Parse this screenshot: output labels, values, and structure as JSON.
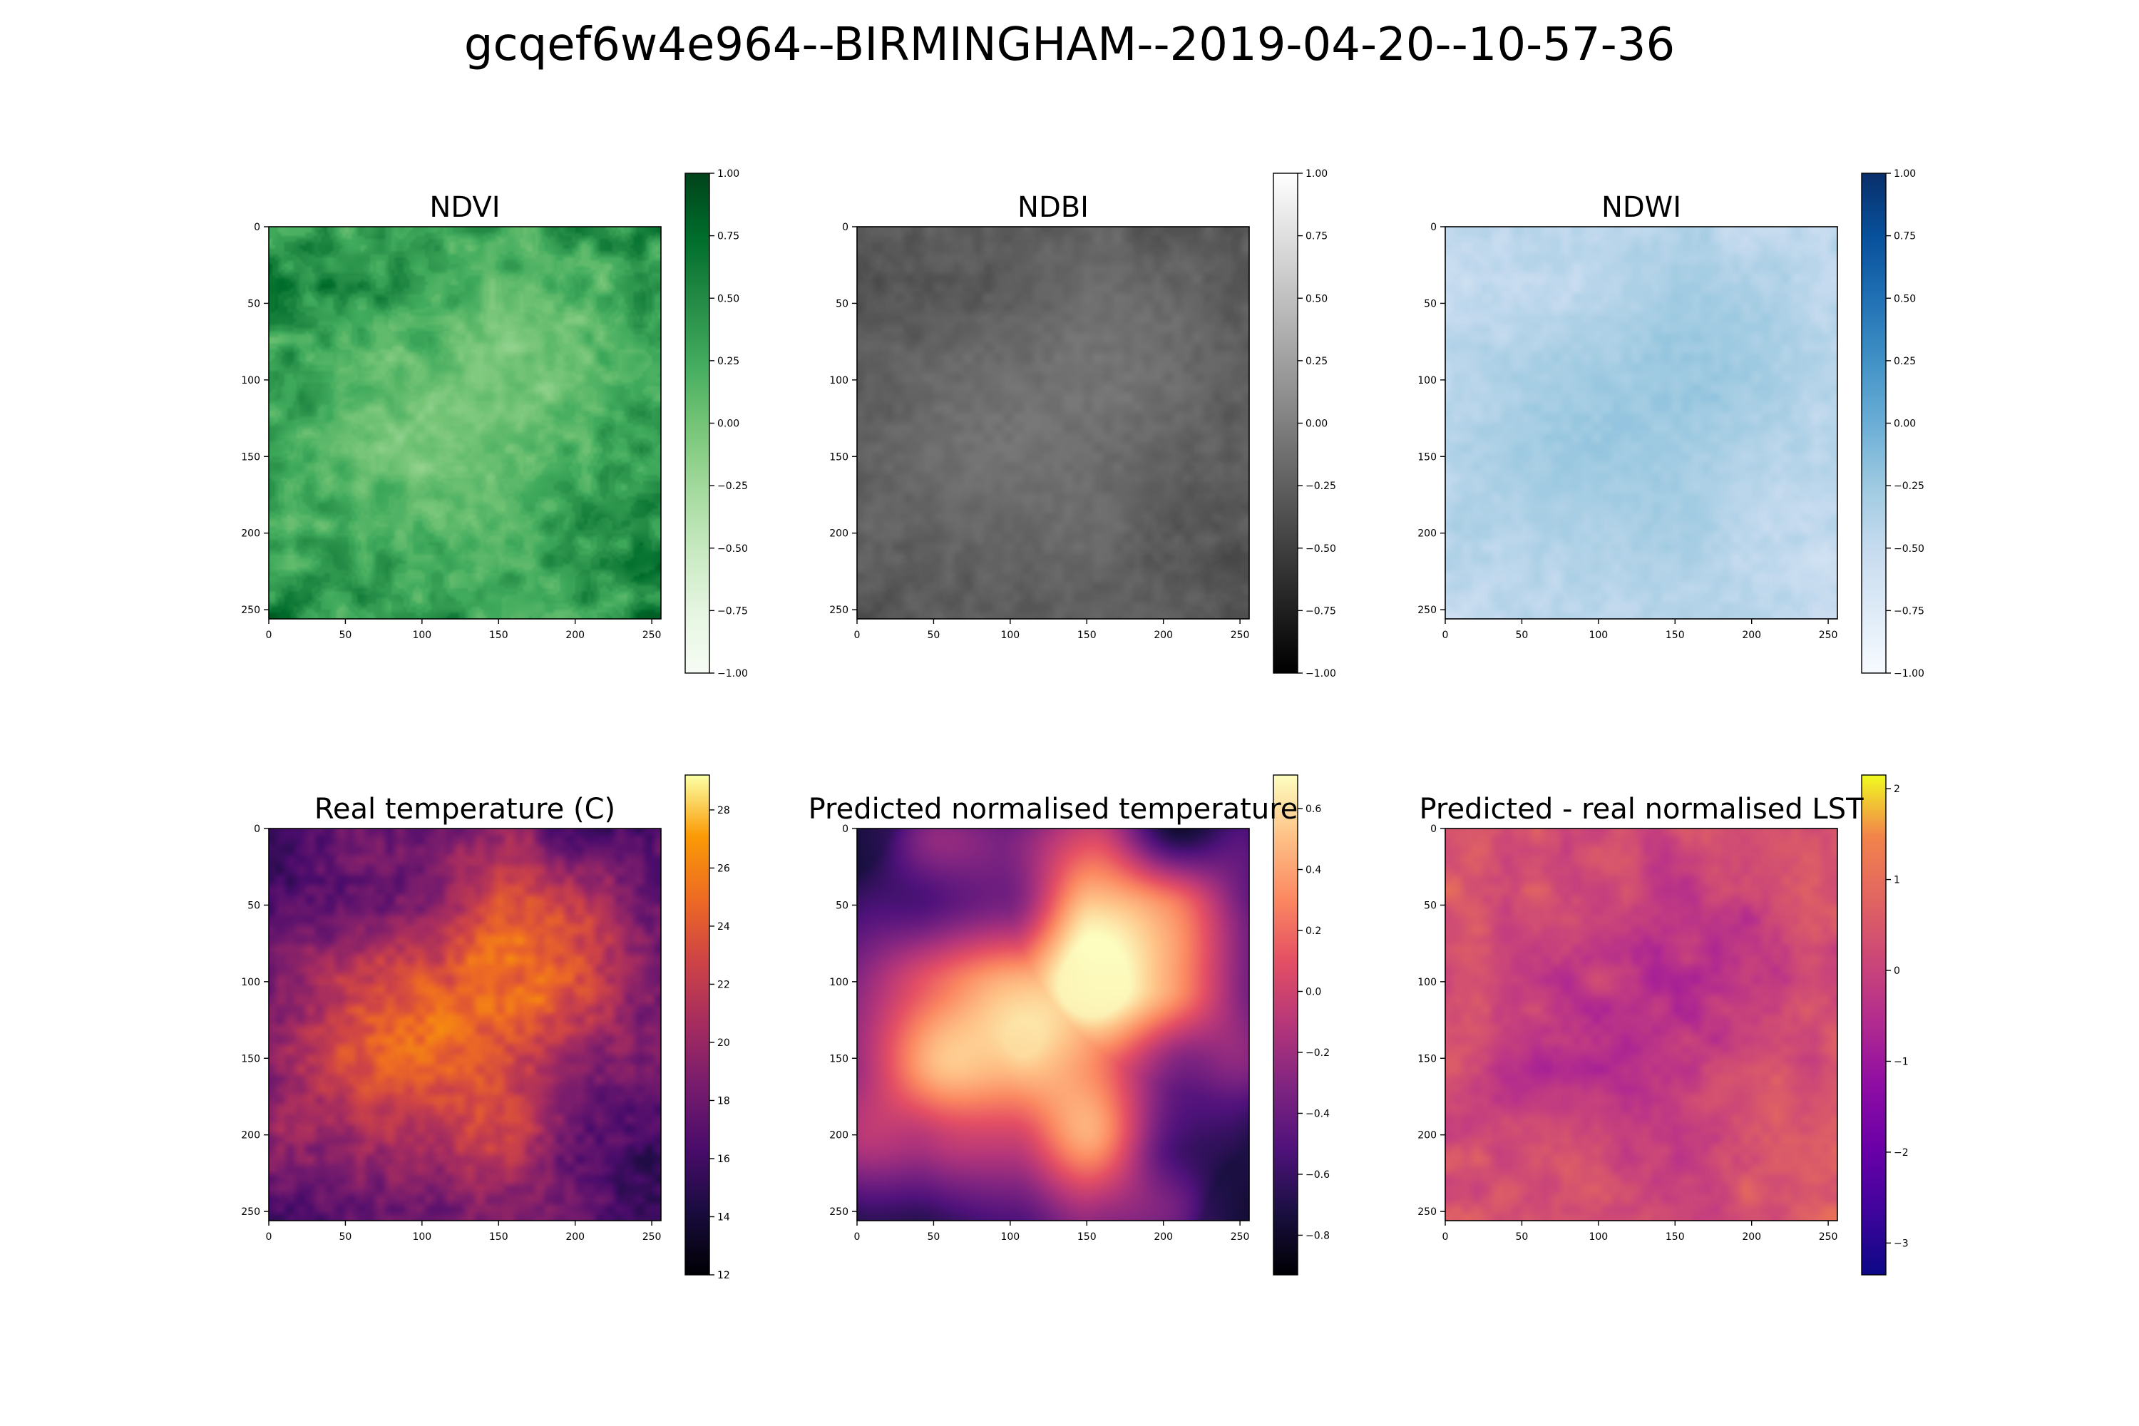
{
  "figure": {
    "suptitle": "gcqef6w4e964--BIRMINGHAM--2019-04-20--10-57-36"
  },
  "chart_data": [
    {
      "type": "heatmap",
      "title": "NDVI",
      "colormap": "Greens",
      "xlim": [
        0,
        256
      ],
      "ylim": [
        256,
        0
      ],
      "xticks": [
        0,
        50,
        100,
        150,
        200,
        250
      ],
      "yticks": [
        0,
        50,
        100,
        150,
        200,
        250
      ],
      "colorbar": {
        "range": [
          -1.0,
          1.0
        ],
        "ticks": [
          "1.00",
          "0.75",
          "0.50",
          "0.25",
          "0.00",
          "−0.25",
          "−0.50",
          "−0.75",
          "−1.00"
        ]
      },
      "value_range_shown": [
        -0.1,
        0.95
      ]
    },
    {
      "type": "heatmap",
      "title": "NDBI",
      "colormap": "Greys_r",
      "xlim": [
        0,
        256
      ],
      "ylim": [
        256,
        0
      ],
      "xticks": [
        0,
        50,
        100,
        150,
        200,
        250
      ],
      "yticks": [
        0,
        50,
        100,
        150,
        200,
        250
      ],
      "colorbar": {
        "range": [
          -1.0,
          1.0
        ],
        "ticks": [
          "1.00",
          "0.75",
          "0.50",
          "0.25",
          "0.00",
          "−0.25",
          "−0.50",
          "−0.75",
          "−1.00"
        ]
      },
      "value_range_shown": [
        -0.6,
        0.0
      ]
    },
    {
      "type": "heatmap",
      "title": "NDWI",
      "colormap": "Blues",
      "xlim": [
        0,
        256
      ],
      "ylim": [
        256,
        0
      ],
      "xticks": [
        0,
        50,
        100,
        150,
        200,
        250
      ],
      "yticks": [
        0,
        50,
        100,
        150,
        200,
        250
      ],
      "colorbar": {
        "range": [
          -1.0,
          1.0
        ],
        "ticks": [
          "1.00",
          "0.75",
          "0.50",
          "0.25",
          "0.00",
          "−0.25",
          "−0.50",
          "−0.75",
          "−1.00"
        ]
      },
      "value_range_shown": [
        -0.7,
        -0.1
      ]
    },
    {
      "type": "heatmap",
      "title": "Real temperature (C)",
      "colormap": "inferno",
      "xlim": [
        0,
        256
      ],
      "ylim": [
        256,
        0
      ],
      "xticks": [
        0,
        50,
        100,
        150,
        200,
        250
      ],
      "yticks": [
        0,
        50,
        100,
        150,
        200,
        250
      ],
      "colorbar": {
        "range": [
          12,
          29.2
        ],
        "ticks": [
          "28",
          "26",
          "24",
          "22",
          "20",
          "18",
          "16",
          "14",
          "12"
        ]
      },
      "value_range_shown": [
        12,
        29
      ]
    },
    {
      "type": "heatmap",
      "title": "Predicted normalised temperature",
      "colormap": "magma",
      "xlim": [
        0,
        256
      ],
      "ylim": [
        256,
        0
      ],
      "xticks": [
        0,
        50,
        100,
        150,
        200,
        250
      ],
      "yticks": [
        0,
        50,
        100,
        150,
        200,
        250
      ],
      "colorbar": {
        "range": [
          -0.93,
          0.71
        ],
        "ticks": [
          "0.6",
          "0.4",
          "0.2",
          "0.0",
          "−0.2",
          "−0.4",
          "−0.6",
          "−0.8"
        ]
      },
      "value_range_shown": [
        -0.9,
        0.7
      ]
    },
    {
      "type": "heatmap",
      "title": "Predicted - real normalised LST",
      "colormap": "plasma",
      "xlim": [
        0,
        256
      ],
      "ylim": [
        256,
        0
      ],
      "xticks": [
        0,
        50,
        100,
        150,
        200,
        250
      ],
      "yticks": [
        0,
        50,
        100,
        150,
        200,
        250
      ],
      "colorbar": {
        "range": [
          -3.35,
          2.15
        ],
        "ticks": [
          "2",
          "1",
          "0",
          "−1",
          "−2",
          "−3"
        ]
      },
      "value_range_shown": [
        -3.3,
        2.1
      ]
    }
  ]
}
